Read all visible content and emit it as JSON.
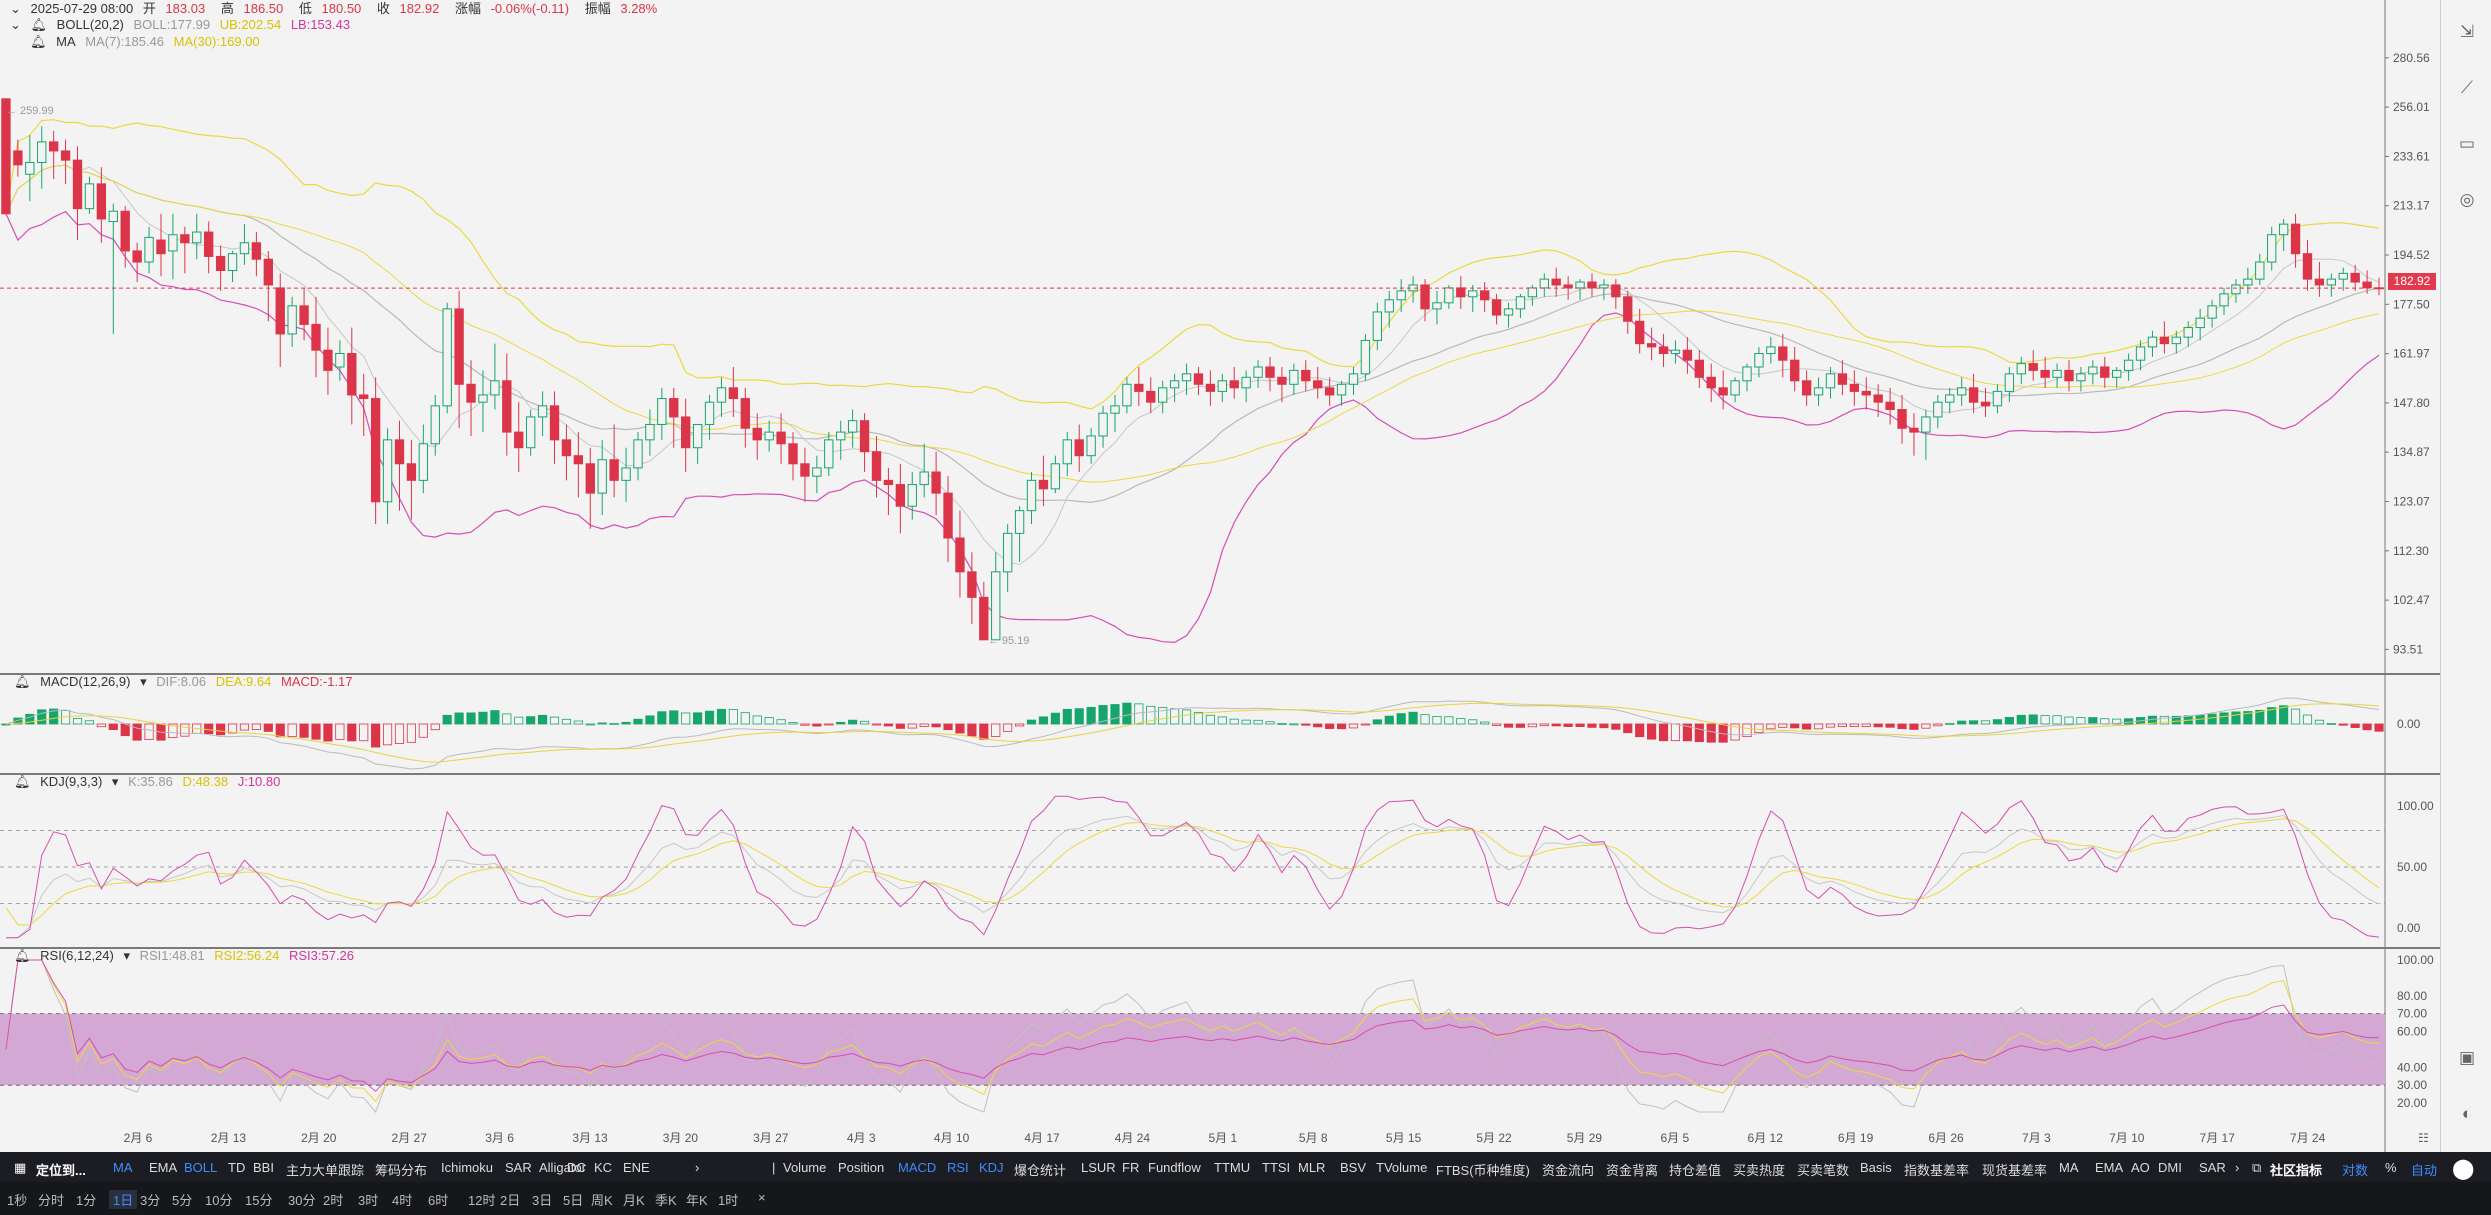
{
  "header": {
    "row1": {
      "date": "2025-07-29 08:00",
      "open_label": "开",
      "open": "183.03",
      "high_label": "高",
      "high": "186.50",
      "low_label": "低",
      "low": "180.50",
      "close_label": "收",
      "close": "182.92",
      "change_label": "涨幅",
      "change": "-0.06%(-0.11)",
      "amp_label": "振幅",
      "amp": "3.28%"
    },
    "row2": {
      "name": "BOLL(20,2)",
      "boll": "BOLL:177.99",
      "ub": "UB:202.54",
      "lb": "LB:153.43"
    },
    "row3": {
      "name": "MA",
      "ma7": "MA(7):185.46",
      "ma30": "MA(30):169.00"
    }
  },
  "main_y_ticks": [
    "280.56",
    "256.01",
    "233.61",
    "213.17",
    "194.52",
    "177.50",
    "161.97",
    "147.80",
    "134.87",
    "123.07",
    "112.30",
    "102.47",
    "93.51"
  ],
  "current_price": "182.92",
  "max_label": "← 259.99",
  "min_label": "← 95.19",
  "x_labels": [
    "2月 6",
    "2月 13",
    "2月 20",
    "2月 27",
    "3月 6",
    "3月 13",
    "3月 20",
    "3月 27",
    "4月 3",
    "4月 10",
    "4月 17",
    "4月 24",
    "5月 1",
    "5月 8",
    "5月 15",
    "5月 22",
    "5月 29",
    "6月 5",
    "6月 12",
    "6月 19",
    "6月 26",
    "7月 3",
    "7月 10",
    "7月 17",
    "7月 24"
  ],
  "macd": {
    "name": "MACD(12,26,9)",
    "dif": "DIF:8.06",
    "dea": "DEA:9.64",
    "macd": "MACD:-1.17",
    "tick": "0.00"
  },
  "kdj": {
    "name": "KDJ(9,3,3)",
    "k": "K:35.86",
    "d": "D:48.38",
    "j": "J:10.80",
    "ticks": [
      "100.00",
      "50.00",
      "0.00"
    ]
  },
  "rsi": {
    "name": "RSI(6,12,24)",
    "r1": "RSI1:48.81",
    "r2": "RSI2:56.24",
    "r3": "RSI3:57.26",
    "ticks": [
      "100.00",
      "80.00",
      "70.00",
      "60.00",
      "40.00",
      "30.00",
      "20.00"
    ]
  },
  "toolbar1": {
    "locate": "定位到...",
    "left_items": [
      "MA",
      "EMA",
      "BOLL",
      "TD",
      "BBI",
      "主力大单跟踪",
      "筹码分布",
      "Ichimoku",
      "SAR",
      "Alligator",
      "DC",
      "KC",
      "ENE"
    ],
    "right_items": [
      "Volume",
      "Position",
      "MACD",
      "RSI",
      "KDJ",
      "爆仓统计",
      "LSUR",
      "FR",
      "Fundflow",
      "TTMU",
      "TTSI",
      "MLR",
      "BSV",
      "TVolume",
      "FTBS(币种维度)",
      "资金流向",
      "资金背离",
      "持仓差值",
      "买卖热度",
      "买卖笔数",
      "Basis",
      "指数基差率",
      "现货基差率",
      "MA",
      "EMA",
      "AO",
      "DMI",
      "SAR"
    ],
    "community": "社区指标",
    "log": "对数",
    "percent": "%",
    "auto": "自动"
  },
  "toolbar2": {
    "intervals": [
      "1秒",
      "分时",
      "1分",
      "1日",
      "3分",
      "5分",
      "10分",
      "15分",
      "30分",
      "2时",
      "3时",
      "4时",
      "6时",
      "12时",
      "2日",
      "3日",
      "5日",
      "周K",
      "月K",
      "季K",
      "年K",
      "1时"
    ]
  },
  "colors": {
    "up": "#16a56b",
    "down": "#dc3448",
    "boll_mid": "#b9b9b9",
    "boll_ub": "#ebd940",
    "boll_lb": "#d64db3",
    "ma7": "#c7c7c7",
    "ma30": "#ebd940"
  },
  "chart_data": {
    "type": "candlestick",
    "x_start": "2025-01-31",
    "dates_label": "daily",
    "ohlc": [
      [
        259.99,
        245,
        210,
        235
      ],
      [
        236,
        241,
        230,
        225
      ],
      [
        226,
        243,
        231,
        215
      ],
      [
        231,
        247,
        240,
        220
      ],
      [
        240,
        245,
        236,
        224
      ],
      [
        236,
        241,
        232,
        222
      ],
      [
        232,
        238,
        212,
        200
      ],
      [
        212,
        225,
        222,
        210
      ],
      [
        222,
        229,
        208,
        199
      ],
      [
        207,
        214,
        211,
        168
      ],
      [
        211,
        213,
        196,
        190
      ],
      [
        196,
        199,
        192,
        185
      ],
      [
        192,
        205,
        201,
        188
      ],
      [
        200,
        210,
        195,
        187
      ],
      [
        196,
        210,
        202,
        186
      ],
      [
        202,
        205,
        199,
        188
      ],
      [
        199,
        210,
        203,
        193
      ],
      [
        203,
        207,
        194,
        188
      ],
      [
        194,
        198,
        189,
        182
      ],
      [
        189,
        196,
        195,
        185
      ],
      [
        195,
        206,
        199,
        191
      ],
      [
        199,
        203,
        193,
        187
      ],
      [
        193,
        196,
        184,
        172
      ],
      [
        183,
        188,
        168,
        158
      ],
      [
        168,
        180,
        177,
        164
      ],
      [
        177,
        183,
        171,
        166
      ],
      [
        171,
        180,
        163,
        155
      ],
      [
        163,
        170,
        157,
        150
      ],
      [
        158,
        166,
        162,
        154
      ],
      [
        162,
        170,
        150,
        142
      ],
      [
        150,
        156,
        149,
        139
      ],
      [
        149,
        155,
        123,
        118
      ],
      [
        123,
        141,
        138,
        118
      ],
      [
        138,
        143,
        132,
        121
      ],
      [
        132,
        138,
        128,
        119
      ],
      [
        128,
        142,
        137,
        125
      ],
      [
        137,
        150,
        147,
        134
      ],
      [
        147,
        178,
        176,
        145
      ],
      [
        176,
        182,
        153,
        141
      ],
      [
        153,
        160,
        148,
        139
      ],
      [
        148,
        157,
        150,
        140
      ],
      [
        150,
        165,
        154,
        146
      ],
      [
        154,
        162,
        140,
        134
      ],
      [
        140,
        148,
        136,
        130
      ],
      [
        136,
        146,
        144,
        134
      ],
      [
        144,
        151,
        147,
        139
      ],
      [
        147,
        151,
        138,
        132
      ],
      [
        138,
        142,
        134,
        128
      ],
      [
        134,
        140,
        132,
        124
      ],
      [
        132,
        136,
        125,
        117
      ],
      [
        125,
        138,
        133,
        120
      ],
      [
        133,
        142,
        128,
        124
      ],
      [
        128,
        136,
        131,
        123
      ],
      [
        131,
        140,
        138,
        128
      ],
      [
        138,
        146,
        142,
        134
      ],
      [
        142,
        152,
        149,
        138
      ],
      [
        149,
        152,
        144,
        136
      ],
      [
        144,
        149,
        136,
        130
      ],
      [
        136,
        142,
        142,
        132
      ],
      [
        142,
        150,
        148,
        138
      ],
      [
        148,
        155,
        152,
        144
      ],
      [
        152,
        158,
        149,
        144
      ],
      [
        149,
        152,
        141,
        136
      ],
      [
        141,
        145,
        138,
        133
      ],
      [
        138,
        143,
        140,
        135
      ],
      [
        140,
        145,
        137,
        132
      ],
      [
        137,
        140,
        132,
        128
      ],
      [
        132,
        136,
        129,
        123
      ],
      [
        129,
        134,
        131,
        125
      ],
      [
        131,
        140,
        138,
        129
      ],
      [
        138,
        143,
        140,
        133
      ],
      [
        140,
        146,
        143,
        136
      ],
      [
        143,
        145,
        135,
        130
      ],
      [
        135,
        139,
        128,
        124
      ],
      [
        128,
        131,
        127,
        120
      ],
      [
        127,
        132,
        122,
        116
      ],
      [
        122,
        130,
        127,
        119
      ],
      [
        127,
        137,
        130,
        124
      ],
      [
        130,
        135,
        125,
        120
      ],
      [
        125,
        129,
        115,
        110
      ],
      [
        115,
        121,
        108,
        103
      ],
      [
        108,
        112,
        103,
        98
      ],
      [
        103,
        106,
        95.19,
        95.19
      ],
      [
        95.19,
        112,
        108,
        96
      ],
      [
        108,
        118,
        116,
        104
      ],
      [
        116,
        122,
        121,
        110
      ],
      [
        121,
        130,
        128,
        118
      ],
      [
        128,
        134,
        126,
        122
      ],
      [
        126,
        134,
        132,
        125
      ],
      [
        132,
        140,
        138,
        129
      ],
      [
        138,
        142,
        134,
        130
      ],
      [
        134,
        141,
        139,
        132
      ],
      [
        139,
        147,
        145,
        136
      ],
      [
        145,
        150,
        147,
        140
      ],
      [
        147,
        155,
        153,
        145
      ],
      [
        153,
        158,
        151,
        147
      ],
      [
        151,
        155,
        148,
        145
      ],
      [
        148,
        154,
        152,
        145
      ],
      [
        152,
        156,
        154,
        148
      ],
      [
        154,
        159,
        156,
        150
      ],
      [
        156,
        158,
        153,
        150
      ],
      [
        153,
        157,
        151,
        147
      ],
      [
        151,
        156,
        154,
        148
      ],
      [
        154,
        158,
        152,
        149
      ],
      [
        152,
        157,
        155,
        148
      ],
      [
        155,
        160,
        158,
        152
      ],
      [
        158,
        161,
        155,
        151
      ],
      [
        155,
        158,
        153,
        148
      ],
      [
        153,
        159,
        157,
        150
      ],
      [
        157,
        160,
        154,
        151
      ],
      [
        154,
        158,
        152,
        149
      ],
      [
        152,
        155,
        150,
        147
      ],
      [
        150,
        154,
        153,
        147
      ],
      [
        153,
        158,
        156,
        150
      ],
      [
        156,
        168,
        166,
        154
      ],
      [
        166,
        178,
        175,
        163
      ],
      [
        175,
        182,
        179,
        170
      ],
      [
        179,
        186,
        182,
        175
      ],
      [
        182,
        187,
        184,
        178
      ],
      [
        184,
        186,
        176,
        172
      ],
      [
        176,
        182,
        178,
        171
      ],
      [
        178,
        184,
        183,
        176
      ],
      [
        183,
        187,
        180,
        176
      ],
      [
        180,
        184,
        182,
        175
      ],
      [
        182,
        185,
        179,
        175
      ],
      [
        179,
        181,
        174,
        171
      ],
      [
        174,
        178,
        176,
        170
      ],
      [
        176,
        181,
        180,
        173
      ],
      [
        180,
        184,
        183,
        177
      ],
      [
        183,
        188,
        186,
        180
      ],
      [
        186,
        190,
        184,
        180
      ],
      [
        184,
        187,
        183,
        179
      ],
      [
        183,
        186,
        185,
        179
      ],
      [
        185,
        188,
        183,
        180
      ],
      [
        183,
        186,
        184,
        179
      ],
      [
        184,
        186,
        180,
        176
      ],
      [
        180,
        182,
        172,
        168
      ],
      [
        172,
        176,
        165,
        162
      ],
      [
        165,
        170,
        164,
        160
      ],
      [
        164,
        168,
        162,
        158
      ],
      [
        162,
        166,
        163,
        159
      ],
      [
        163,
        167,
        160,
        156
      ],
      [
        160,
        163,
        155,
        152
      ],
      [
        155,
        159,
        152,
        148
      ],
      [
        152,
        157,
        150,
        146
      ],
      [
        150,
        155,
        154,
        148
      ],
      [
        154,
        159,
        158,
        151
      ],
      [
        158,
        164,
        162,
        155
      ],
      [
        162,
        167,
        164,
        159
      ],
      [
        164,
        168,
        160,
        155
      ],
      [
        160,
        164,
        154,
        151
      ],
      [
        154,
        157,
        150,
        147
      ],
      [
        150,
        155,
        152,
        147
      ],
      [
        152,
        158,
        156,
        149
      ],
      [
        156,
        160,
        153,
        150
      ],
      [
        153,
        157,
        151,
        147
      ],
      [
        151,
        155,
        150,
        146
      ],
      [
        150,
        153,
        148,
        144
      ],
      [
        148,
        152,
        146,
        142
      ],
      [
        146,
        150,
        141,
        137
      ],
      [
        141,
        145,
        140,
        134
      ],
      [
        140,
        146,
        144,
        133
      ],
      [
        144,
        150,
        148,
        141
      ],
      [
        148,
        152,
        150,
        145
      ],
      [
        150,
        155,
        152,
        147
      ],
      [
        152,
        156,
        148,
        145
      ],
      [
        148,
        152,
        147,
        144
      ],
      [
        147,
        153,
        151,
        145
      ],
      [
        151,
        158,
        156,
        148
      ],
      [
        156,
        161,
        159,
        153
      ],
      [
        159,
        163,
        157,
        154
      ],
      [
        157,
        161,
        155,
        152
      ],
      [
        155,
        159,
        157,
        152
      ],
      [
        157,
        160,
        154,
        151
      ],
      [
        154,
        158,
        156,
        151
      ],
      [
        156,
        160,
        158,
        153
      ],
      [
        158,
        161,
        155,
        152
      ],
      [
        155,
        158,
        157,
        152
      ],
      [
        157,
        162,
        160,
        154
      ],
      [
        160,
        166,
        164,
        157
      ],
      [
        164,
        169,
        167,
        161
      ],
      [
        167,
        172,
        165,
        162
      ],
      [
        165,
        169,
        167,
        162
      ],
      [
        167,
        172,
        170,
        164
      ],
      [
        170,
        176,
        173,
        166
      ],
      [
        173,
        179,
        177,
        170
      ],
      [
        177,
        183,
        181,
        174
      ],
      [
        181,
        186,
        184,
        178
      ],
      [
        184,
        190,
        186,
        181
      ],
      [
        186,
        195,
        192,
        184
      ],
      [
        192,
        205,
        202,
        189
      ],
      [
        202,
        208,
        206,
        196
      ],
      [
        206,
        210,
        195,
        190
      ],
      [
        195,
        200,
        186,
        182
      ],
      [
        186,
        192,
        184,
        180
      ],
      [
        184,
        188,
        186,
        180
      ],
      [
        186,
        190,
        188,
        182
      ],
      [
        188,
        191,
        185,
        182
      ],
      [
        185,
        189,
        183.03,
        181
      ],
      [
        183.03,
        186.5,
        182.92,
        180.5
      ]
    ],
    "y_range": [
      90,
      290
    ],
    "title": "BOLL(20,2)"
  }
}
